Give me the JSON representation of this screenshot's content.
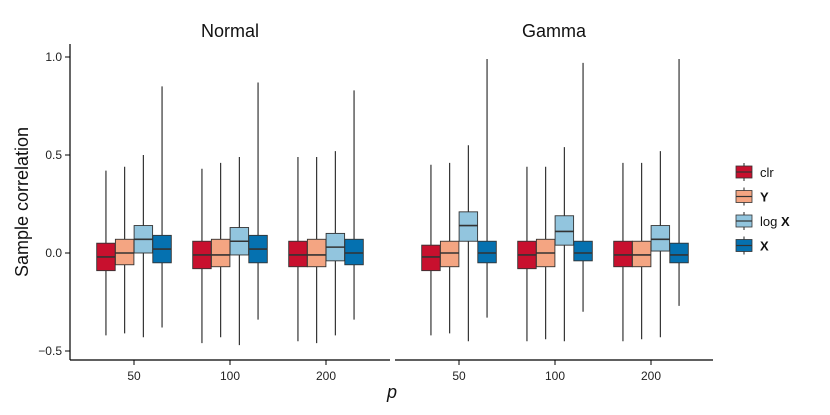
{
  "chart_data": {
    "type": "boxplot",
    "ylabel": "Sample correlation",
    "xlabel": "p",
    "ylim": [
      -0.55,
      1.08
    ],
    "yticks": [
      -0.5,
      0.0,
      0.5,
      1.0
    ],
    "ytick_labels": [
      "−0.5",
      "0.0",
      "0.5",
      "1.0"
    ],
    "categories": [
      "50",
      "100",
      "200"
    ],
    "legend": [
      {
        "key": "clr",
        "label": "clr",
        "bold": false,
        "color": "#c8102e"
      },
      {
        "key": "Y",
        "label": "Y",
        "bold": true,
        "color": "#f4a582"
      },
      {
        "key": "logX",
        "label": "log ",
        "bold_suffix": "X",
        "color": "#92c5de"
      },
      {
        "key": "X",
        "label": "X",
        "bold": true,
        "color": "#0571b0"
      }
    ],
    "panels": [
      {
        "title": "Normal",
        "groups": [
          {
            "category": "50",
            "boxes": [
              {
                "series": "clr",
                "min": -0.42,
                "q1": -0.09,
                "median": -0.02,
                "q3": 0.05,
                "max": 0.42
              },
              {
                "series": "Y",
                "min": -0.41,
                "q1": -0.06,
                "median": 0.0,
                "q3": 0.07,
                "max": 0.44
              },
              {
                "series": "logX",
                "min": -0.43,
                "q1": 0.0,
                "median": 0.07,
                "q3": 0.14,
                "max": 0.5
              },
              {
                "series": "X",
                "min": -0.38,
                "q1": -0.05,
                "median": 0.02,
                "q3": 0.09,
                "max": 0.85
              }
            ]
          },
          {
            "category": "100",
            "boxes": [
              {
                "series": "clr",
                "min": -0.46,
                "q1": -0.08,
                "median": -0.01,
                "q3": 0.06,
                "max": 0.43
              },
              {
                "series": "Y",
                "min": -0.43,
                "q1": -0.07,
                "median": -0.01,
                "q3": 0.07,
                "max": 0.46
              },
              {
                "series": "logX",
                "min": -0.47,
                "q1": -0.01,
                "median": 0.06,
                "q3": 0.13,
                "max": 0.49
              },
              {
                "series": "X",
                "min": -0.34,
                "q1": -0.05,
                "median": 0.02,
                "q3": 0.09,
                "max": 0.87
              }
            ]
          },
          {
            "category": "200",
            "boxes": [
              {
                "series": "clr",
                "min": -0.45,
                "q1": -0.07,
                "median": -0.01,
                "q3": 0.06,
                "max": 0.49
              },
              {
                "series": "Y",
                "min": -0.46,
                "q1": -0.07,
                "median": -0.01,
                "q3": 0.07,
                "max": 0.49
              },
              {
                "series": "logX",
                "min": -0.42,
                "q1": -0.04,
                "median": 0.03,
                "q3": 0.1,
                "max": 0.52
              },
              {
                "series": "X",
                "min": -0.34,
                "q1": -0.06,
                "median": 0.0,
                "q3": 0.07,
                "max": 0.83
              }
            ]
          }
        ]
      },
      {
        "title": "Gamma",
        "groups": [
          {
            "category": "50",
            "boxes": [
              {
                "series": "clr",
                "min": -0.42,
                "q1": -0.09,
                "median": -0.02,
                "q3": 0.04,
                "max": 0.45
              },
              {
                "series": "Y",
                "min": -0.41,
                "q1": -0.07,
                "median": 0.0,
                "q3": 0.06,
                "max": 0.46
              },
              {
                "series": "logX",
                "min": -0.45,
                "q1": 0.06,
                "median": 0.14,
                "q3": 0.21,
                "max": 0.55
              },
              {
                "series": "X",
                "min": -0.33,
                "q1": -0.05,
                "median": 0.0,
                "q3": 0.06,
                "max": 0.99
              }
            ]
          },
          {
            "category": "100",
            "boxes": [
              {
                "series": "clr",
                "min": -0.45,
                "q1": -0.08,
                "median": -0.01,
                "q3": 0.06,
                "max": 0.44
              },
              {
                "series": "Y",
                "min": -0.44,
                "q1": -0.07,
                "median": 0.0,
                "q3": 0.07,
                "max": 0.44
              },
              {
                "series": "logX",
                "min": -0.45,
                "q1": 0.04,
                "median": 0.11,
                "q3": 0.19,
                "max": 0.54
              },
              {
                "series": "X",
                "min": -0.3,
                "q1": -0.04,
                "median": 0.0,
                "q3": 0.06,
                "max": 0.97
              }
            ]
          },
          {
            "category": "200",
            "boxes": [
              {
                "series": "clr",
                "min": -0.45,
                "q1": -0.07,
                "median": -0.01,
                "q3": 0.06,
                "max": 0.46
              },
              {
                "series": "Y",
                "min": -0.44,
                "q1": -0.07,
                "median": -0.01,
                "q3": 0.06,
                "max": 0.46
              },
              {
                "series": "logX",
                "min": -0.43,
                "q1": 0.01,
                "median": 0.07,
                "q3": 0.14,
                "max": 0.52
              },
              {
                "series": "X",
                "min": -0.27,
                "q1": -0.05,
                "median": -0.01,
                "q3": 0.05,
                "max": 0.99
              }
            ]
          }
        ]
      }
    ]
  }
}
